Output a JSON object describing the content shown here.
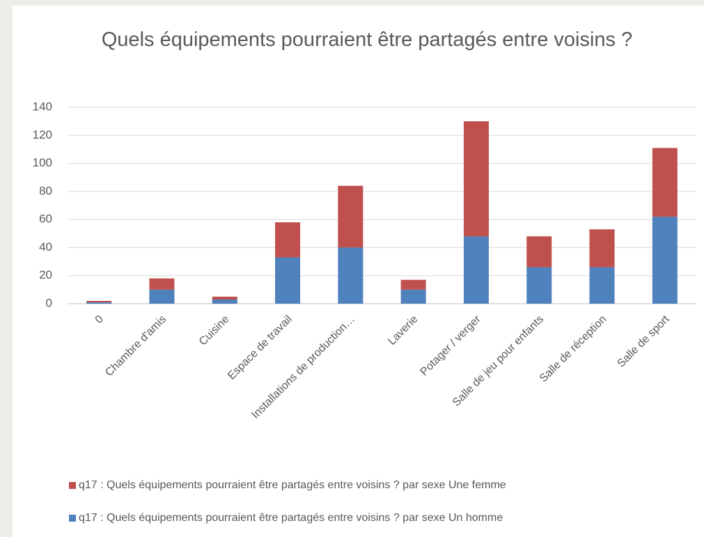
{
  "chart_data": {
    "type": "stacked_bar",
    "title": "Quels équipements pourraient être partagés entre voisins ?",
    "categories": [
      "0",
      "Chambre d'amis",
      "Cuisine",
      "Espace de travail",
      "Installations de production…",
      "Laverie",
      "Potager / verger",
      "Salle de jeu pour enfants",
      "Salle de réception",
      "Salle de sport"
    ],
    "series": [
      {
        "name": "q17 : Quels équipements pourraient être partagés entre voisins ? par sexe Un homme",
        "color": "#4f81bd",
        "values": [
          1,
          10,
          3,
          33,
          40,
          10,
          48,
          26,
          26,
          62
        ]
      },
      {
        "name": "q17 : Quels équipements pourraient être partagés entre voisins ? par sexe Une femme",
        "color": "#c0504d",
        "values": [
          1,
          8,
          2,
          25,
          44,
          7,
          82,
          22,
          27,
          49
        ]
      }
    ],
    "ylim": [
      0,
      140
    ],
    "yticks": [
      0,
      20,
      40,
      60,
      80,
      100,
      120,
      140
    ],
    "grid": true,
    "legend": "bottom"
  }
}
